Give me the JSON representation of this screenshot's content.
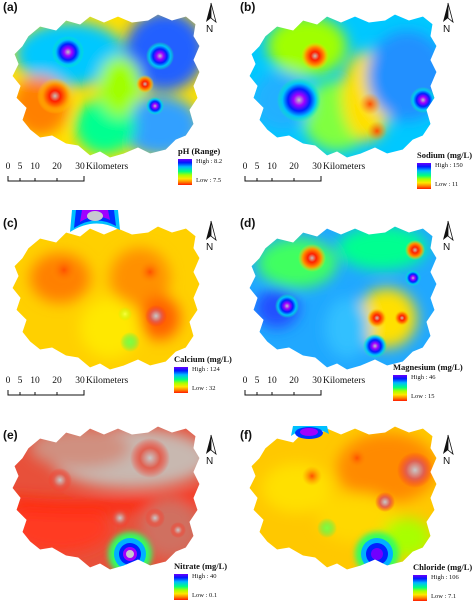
{
  "scale": {
    "ticks": [
      "0",
      "5",
      "10",
      "20",
      "30"
    ],
    "unit": "Kilometers"
  },
  "north_label": "N",
  "panels": [
    {
      "label": "(a)",
      "legend_title": "pH (Range)",
      "high": "High : 8.2",
      "low": "Low : 7.5"
    },
    {
      "label": "(b)",
      "legend_title": "Sodium (mg/L)",
      "high": "High : 150",
      "low": "Low : 11"
    },
    {
      "label": "(c)",
      "legend_title": "Calcium (mg/L)",
      "high": "High : 124",
      "low": "Low : 32"
    },
    {
      "label": "(d)",
      "legend_title": "Magnesium (mg/L)",
      "high": "High : 46",
      "low": "Low : 15"
    },
    {
      "label": "(e)",
      "legend_title": "Nitrate (mg/L)",
      "high": "High : 40",
      "low": "Low : 0.1"
    },
    {
      "label": "(f)",
      "legend_title": "Chloride (mg/L)",
      "high": "High : 106",
      "low": "Low : 7.1"
    }
  ],
  "colors": {
    "ramp": [
      "#6a00ff",
      "#0018ff",
      "#00b8ff",
      "#00ff80",
      "#a8ff00",
      "#ffe600",
      "#ff8a00",
      "#ff1a00"
    ]
  }
}
